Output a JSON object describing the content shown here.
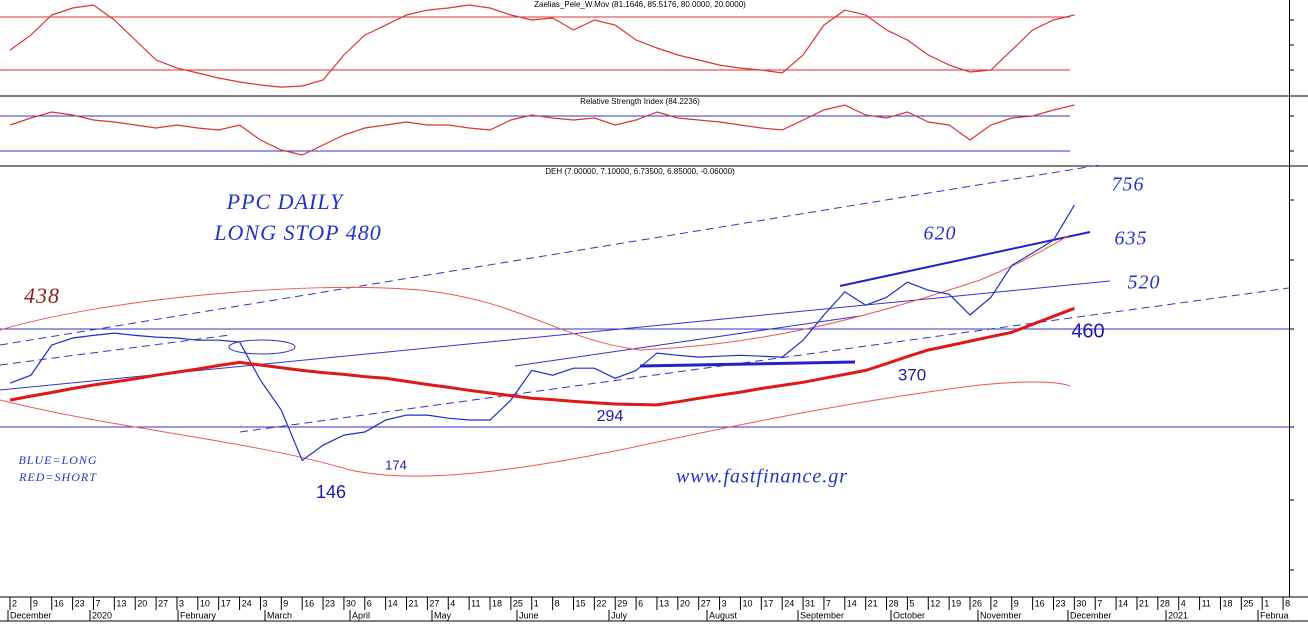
{
  "chart_data": [
    {
      "type": "line",
      "title": "Zaelias_Pele_W.Mov (81.1646, 85.5176, 80.0000, 20.0000)",
      "ylim": [
        -8.3,
        99.3
      ],
      "levels": [
        80,
        20
      ],
      "level_color": "#d33",
      "series": [
        {
          "color": "#d33",
          "values": [
            42.6,
            59.6,
            82.3,
            90.2,
            93.6,
            76.6,
            54.0,
            31.3,
            22.2,
            16.6,
            10.9,
            6.4,
            3.0,
            0.7,
            1.9,
            8.7,
            37.0,
            59.6,
            70.9,
            82.3,
            87.9,
            90.2,
            93.6,
            90.2,
            82.3,
            76.6,
            78.9,
            65.3,
            76.6,
            70.9,
            54.0,
            44.9,
            37.0,
            31.3,
            25.6,
            22.2,
            20.0,
            16.6,
            37.0,
            70.9,
            87.9,
            82.3,
            65.3,
            54.0,
            37.0,
            25.6,
            17.7,
            20.0,
            42.6,
            65.3,
            76.6,
            82.3
          ]
        }
      ]
    },
    {
      "type": "line",
      "title": "Relative Strength Index (84.2236)",
      "ylim": [
        14,
        91.7
      ],
      "levels": [
        70,
        30
      ],
      "level_color": "#33c",
      "series": [
        {
          "color": "#d33",
          "values": [
            59.7,
            67.7,
            74.6,
            71.1,
            65.4,
            63.1,
            59.7,
            56.3,
            59.7,
            56.3,
            54.0,
            59.7,
            42.6,
            31.1,
            25.4,
            36.9,
            48.3,
            56.3,
            59.7,
            63.1,
            59.7,
            59.7,
            56.3,
            54.0,
            65.4,
            71.1,
            67.7,
            65.4,
            67.7,
            59.7,
            65.4,
            74.6,
            67.7,
            65.4,
            63.1,
            59.7,
            56.3,
            54.0,
            65.4,
            76.9,
            82.6,
            71.1,
            67.7,
            74.6,
            63.1,
            59.7,
            42.6,
            59.7,
            67.7,
            70.0,
            76.9,
            82.6
          ]
        }
      ]
    },
    {
      "type": "line",
      "title": "DEH (7.00000, 7.10000, 6.73500, 6.85000, -0.06000)",
      "ylim": [
        -140,
        826
      ],
      "categories": [
        "2",
        "9",
        "16",
        "23",
        "7",
        "13",
        "20",
        "27",
        "3",
        "10",
        "17",
        "24",
        "3",
        "9",
        "16",
        "23",
        "30",
        "6",
        "14",
        "21",
        "27",
        "4",
        "11",
        "18",
        "25",
        "1",
        "8",
        "15",
        "22",
        "29",
        "6",
        "13",
        "20",
        "27",
        "3",
        "10",
        "17",
        "24",
        "31",
        "7",
        "14",
        "21",
        "28",
        "5",
        "12",
        "19",
        "26",
        "2",
        "9",
        "16",
        "23",
        "30",
        "7",
        "14",
        "21",
        "28",
        "4",
        "11",
        "18",
        "25",
        "1",
        "8"
      ],
      "month_labels": [
        "December",
        "2020",
        "February",
        "March",
        "April",
        "May",
        "June",
        "July",
        "August",
        "September",
        "October",
        "November",
        "December",
        "2021",
        "Februa"
      ],
      "series": [
        {
          "color": "#1a2fc8",
          "values": [
            338,
            356,
            424,
            440,
            446,
            451,
            446,
            442,
            440,
            435,
            435,
            431,
            345,
            277,
            164,
            198,
            221,
            228,
            255,
            266,
            266,
            259,
            255,
            255,
            300,
            367,
            356,
            372,
            372,
            349,
            367,
            406,
            401,
            397,
            399,
            401,
            399,
            397,
            435,
            492,
            544,
            514,
            532,
            566,
            548,
            539,
            492,
            532,
            604,
            632,
            661,
            740,
            null,
            null,
            null,
            null,
            null,
            null,
            null,
            null,
            null,
            null
          ]
        },
        {
          "color": "#e01818",
          "values": [
            300,
            309,
            317,
            326,
            334,
            341,
            348,
            356,
            363,
            370,
            378,
            385,
            379,
            373,
            367,
            362,
            358,
            353,
            349,
            342,
            335,
            329,
            322,
            316,
            310,
            304,
            301,
            297,
            294,
            291,
            290,
            289,
            296,
            304,
            311,
            318,
            326,
            333,
            340,
            349,
            358,
            367,
            382,
            398,
            413,
            423,
            433,
            443,
            453,
            471,
            489,
            507,
            null,
            null,
            null,
            null,
            null,
            null,
            null,
            null,
            null,
            null
          ]
        }
      ],
      "annotations": [
        "PPC DAILY",
        "LONG STOP 480",
        "438",
        "756",
        "620",
        "635",
        "520",
        "460",
        "370",
        "294",
        "174",
        "146",
        "BLUE=LONG",
        "RED=SHORT",
        "www.fastfinance.gr"
      ]
    }
  ]
}
